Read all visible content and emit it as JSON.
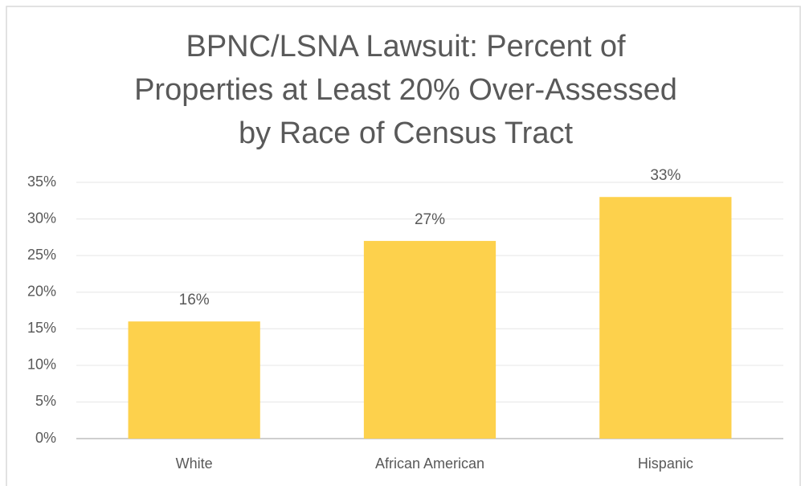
{
  "chart_data": {
    "type": "bar",
    "title": [
      "BPNC/LSNA Lawsuit: Percent of",
      "Properties at Least 20% Over-Assessed",
      "by Race of Census Tract"
    ],
    "categories": [
      "White",
      "African American",
      "Hispanic"
    ],
    "values": [
      16,
      27,
      33
    ],
    "value_labels": [
      "16%",
      "27%",
      "33%"
    ],
    "color": "#fdd14c",
    "ylim": [
      0,
      35
    ],
    "yticks": [
      {
        "value": 0,
        "label": "0%"
      },
      {
        "value": 5,
        "label": "5%"
      },
      {
        "value": 10,
        "label": "10%"
      },
      {
        "value": 15,
        "label": "15%"
      },
      {
        "value": 20,
        "label": "20%"
      },
      {
        "value": 25,
        "label": "25%"
      },
      {
        "value": 30,
        "label": "30%"
      },
      {
        "value": 35,
        "label": "35%"
      }
    ],
    "grid": true
  }
}
